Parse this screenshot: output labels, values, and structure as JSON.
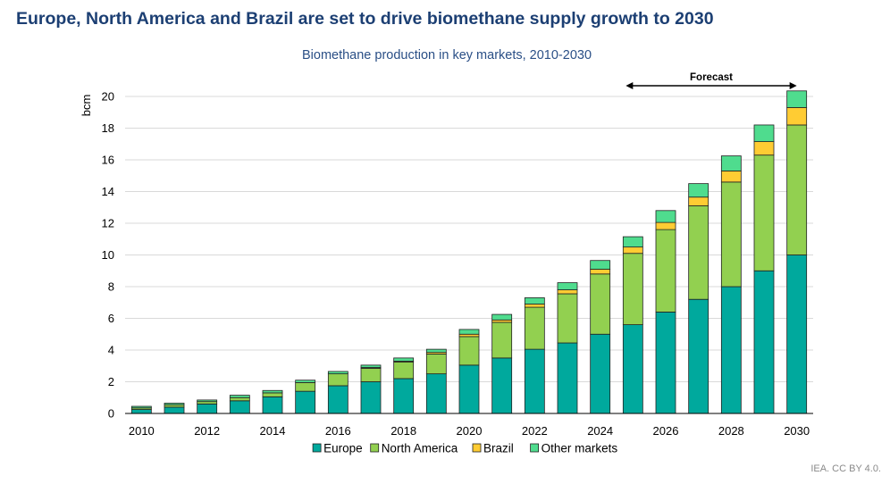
{
  "headline": "Europe, North America and Brazil are set to drive biomethane supply growth to 2030",
  "source": "IEA. CC BY 4.0.",
  "colors": {
    "Europe": "#00a99d",
    "North America": "#92d050",
    "Brazil": "#ffcc33",
    "Other markets": "#4fdc8e"
  },
  "chart_data": {
    "type": "bar",
    "stacked": true,
    "title": "Biomethane production in key markets, 2010-2030",
    "xlabel": "",
    "ylabel": "bcm",
    "ylim": [
      0,
      20
    ],
    "yticks": [
      0,
      2,
      4,
      6,
      8,
      10,
      12,
      14,
      16,
      18,
      20
    ],
    "grid": true,
    "legend": "bottom",
    "categories": [
      "2010",
      "2011",
      "2012",
      "2013",
      "2014",
      "2015",
      "2016",
      "2017",
      "2018",
      "2019",
      "2020",
      "2021",
      "2022",
      "2023",
      "2024",
      "2025",
      "2026",
      "2027",
      "2028",
      "2029",
      "2030"
    ],
    "xtick_labels": [
      "2010",
      "2012",
      "2014",
      "2016",
      "2018",
      "2020",
      "2022",
      "2024",
      "2026",
      "2028",
      "2030"
    ],
    "series": [
      {
        "name": "Europe",
        "values": [
          0.25,
          0.4,
          0.6,
          0.8,
          1.05,
          1.4,
          1.75,
          2.0,
          2.2,
          2.5,
          3.05,
          3.5,
          4.05,
          4.45,
          5.0,
          5.6,
          6.4,
          7.2,
          8.0,
          9.0,
          10.0
        ]
      },
      {
        "name": "North America",
        "values": [
          0.1,
          0.15,
          0.15,
          0.2,
          0.25,
          0.55,
          0.75,
          0.85,
          1.05,
          1.25,
          1.8,
          2.25,
          2.65,
          3.1,
          3.8,
          4.5,
          5.2,
          5.9,
          6.6,
          7.3,
          8.2
        ]
      },
      {
        "name": "Brazil",
        "values": [
          0,
          0,
          0,
          0,
          0,
          0,
          0,
          0.05,
          0.05,
          0.1,
          0.15,
          0.15,
          0.2,
          0.25,
          0.3,
          0.4,
          0.45,
          0.55,
          0.7,
          0.85,
          1.1
        ]
      },
      {
        "name": "Other markets",
        "values": [
          0.1,
          0.1,
          0.1,
          0.15,
          0.15,
          0.15,
          0.15,
          0.15,
          0.2,
          0.2,
          0.3,
          0.35,
          0.4,
          0.45,
          0.55,
          0.65,
          0.75,
          0.85,
          0.95,
          1.05,
          1.05
        ]
      }
    ],
    "annotations": [
      {
        "text": "Forecast",
        "from": "2025",
        "to": "2030"
      }
    ]
  }
}
